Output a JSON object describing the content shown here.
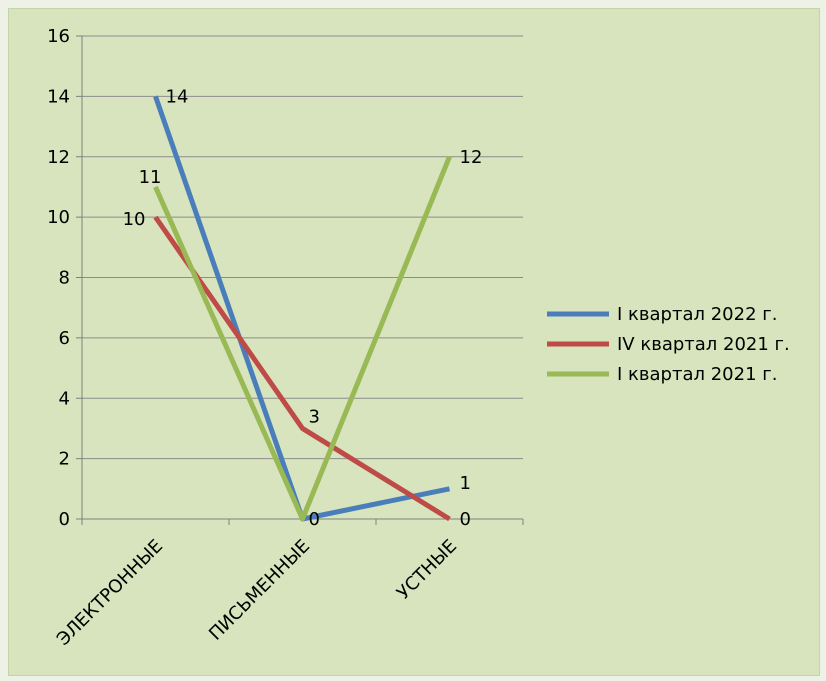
{
  "chart_data": {
    "type": "line",
    "categories": [
      "ЭЛЕКТРОННЫЕ",
      "ПИСЬМЕННЫЕ",
      "УСТНЫЕ"
    ],
    "series": [
      {
        "name": "I квартал 2022 г.",
        "color": "#4a7ebb",
        "values": [
          14,
          0,
          1
        ]
      },
      {
        "name": "IV квартал 2021 г.",
        "color": "#be4b48",
        "values": [
          10,
          3,
          0
        ]
      },
      {
        "name": "I квартал 2021 г.",
        "color": "#98b954",
        "values": [
          11,
          0,
          12
        ]
      }
    ],
    "ylim": [
      0,
      16
    ],
    "yticks": [
      0,
      2,
      4,
      6,
      8,
      10,
      12,
      14,
      16
    ],
    "ytick_labels": [
      "0",
      "2",
      "4",
      "6",
      "8",
      "10",
      "12",
      "14",
      "16"
    ],
    "grid": true,
    "legend_position": "right",
    "data_labels": true
  }
}
